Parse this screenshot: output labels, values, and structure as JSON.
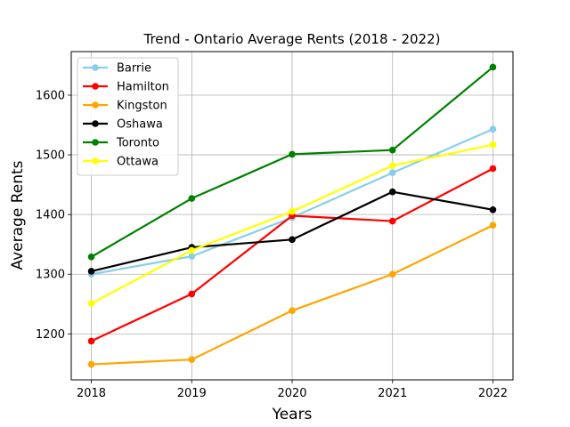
{
  "chart_data": {
    "type": "line",
    "title": "Trend - Ontario Average Rents (2018 - 2022)",
    "xlabel": "Years",
    "ylabel": "Average Rents",
    "x": [
      2018,
      2019,
      2020,
      2021,
      2022
    ],
    "x_tick_labels": [
      "2018",
      "2019",
      "2020",
      "2021",
      "2022"
    ],
    "y_ticks": [
      1200,
      1300,
      1400,
      1500,
      1600
    ],
    "y_tick_labels": [
      "1200",
      "1300",
      "1400",
      "1500",
      "1600"
    ],
    "xlim": [
      2017.8,
      2022.2
    ],
    "ylim": [
      1123,
      1673
    ],
    "grid": true,
    "legend_position": "upper-left",
    "series": [
      {
        "name": "Barrie",
        "color": "#87ceeb",
        "values": [
          1300,
          1330,
          1395,
          1470,
          1543
        ]
      },
      {
        "name": "Hamilton",
        "color": "#ff0000",
        "values": [
          1188,
          1267,
          1398,
          1389,
          1477
        ]
      },
      {
        "name": "Kingston",
        "color": "#ffa500",
        "values": [
          1149,
          1157,
          1239,
          1300,
          1382
        ]
      },
      {
        "name": "Oshawa",
        "color": "#000000",
        "values": [
          1305,
          1345,
          1358,
          1438,
          1408
        ]
      },
      {
        "name": "Toronto",
        "color": "#008000",
        "values": [
          1329,
          1427,
          1501,
          1508,
          1647
        ]
      },
      {
        "name": "Ottawa",
        "color": "#ffff00",
        "values": [
          1251,
          1340,
          1405,
          1482,
          1517
        ]
      }
    ]
  }
}
